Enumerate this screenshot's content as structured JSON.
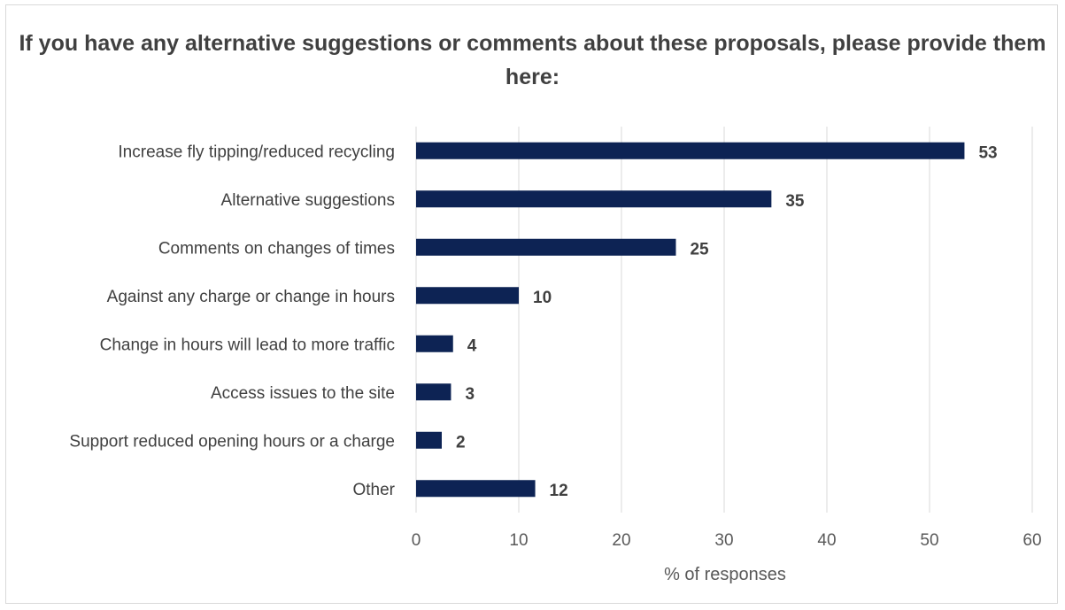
{
  "chart_data": {
    "type": "bar",
    "orientation": "horizontal",
    "title": "If you have any alternative suggestions or comments about these proposals, please provide them here:",
    "xlabel": "% of responses",
    "ylabel": "",
    "xlim": [
      0,
      60
    ],
    "ticks": [
      "0",
      "10",
      "20",
      "30",
      "40",
      "50",
      "60"
    ],
    "grid": true,
    "categories": [
      "Increase fly tipping/reduced recycling",
      "Alternative suggestions",
      "Comments on changes of times",
      "Against any charge or change in hours",
      "Change in hours will lead to more traffic",
      "Access issues to the site",
      "Support reduced opening hours or a charge",
      "Other"
    ],
    "values": [
      53.4,
      34.6,
      25.3,
      10,
      3.6,
      3.4,
      2.5,
      11.6
    ],
    "value_labels": [
      "53",
      "35",
      "25",
      "10",
      "4",
      "3",
      "2",
      "12"
    ],
    "bar_color": "#0d2354"
  }
}
